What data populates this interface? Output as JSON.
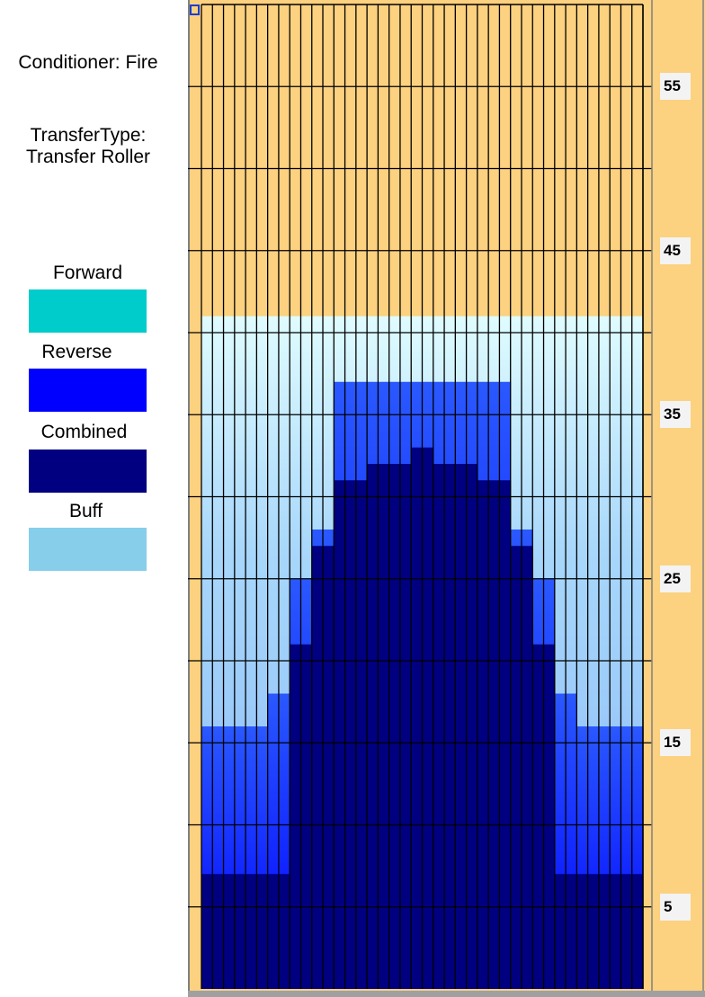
{
  "sidebar": {
    "conditioner_label": "Conditioner: Fire",
    "transfer_line1": "TransferType:",
    "transfer_line2": "Transfer Roller",
    "legend": [
      {
        "label": "Forward",
        "color": "#00cccc"
      },
      {
        "label": "Reverse",
        "color": "#0000ff"
      },
      {
        "label": "Combined",
        "color": "#000080"
      },
      {
        "label": "Buff",
        "color": "#87ceeb"
      }
    ]
  },
  "chart": {
    "background_color": "#fcd17f",
    "grid_color": "#000000",
    "y_ticks": [
      "55",
      "45",
      "35",
      "25",
      "15",
      "5"
    ]
  },
  "chart_data": {
    "type": "heatmap",
    "title": "",
    "xlabel": "",
    "ylabel": "",
    "columns": 40,
    "ylim": [
      0,
      60
    ],
    "y_tick_labels": [
      "55",
      "45",
      "35",
      "25",
      "15",
      "5"
    ],
    "level_colors": [
      "#000080",
      "#0000ff",
      "#87ceeb"
    ],
    "series": [
      {
        "name": "Combined",
        "color": "#000080",
        "columns_top_value": [
          7,
          7,
          7,
          7,
          7,
          7,
          7,
          7,
          21,
          21,
          27,
          27,
          31,
          31,
          31,
          32,
          32,
          32,
          32,
          33,
          33,
          32,
          32,
          32,
          32,
          31,
          31,
          31,
          27,
          27,
          21,
          21,
          7,
          7,
          7,
          7,
          7,
          7,
          7,
          7
        ]
      },
      {
        "name": "Reverse",
        "color": "#0000ff",
        "columns_top_value": [
          16,
          16,
          16,
          16,
          16,
          16,
          18,
          18,
          25,
          25,
          28,
          28,
          37,
          37,
          37,
          37,
          37,
          37,
          37,
          37,
          37,
          37,
          37,
          37,
          37,
          37,
          37,
          37,
          28,
          28,
          25,
          25,
          18,
          18,
          16,
          16,
          16,
          16,
          16,
          16
        ]
      },
      {
        "name": "Buff",
        "color": "#87ceeb",
        "columns_top_value": [
          41,
          41,
          41,
          41,
          41,
          41,
          41,
          41,
          41,
          41,
          41,
          41,
          41,
          41,
          41,
          41,
          41,
          41,
          41,
          41,
          41,
          41,
          41,
          41,
          41,
          41,
          41,
          41,
          41,
          41,
          41,
          41,
          41,
          41,
          41,
          41,
          41,
          41,
          41,
          41
        ]
      }
    ]
  }
}
